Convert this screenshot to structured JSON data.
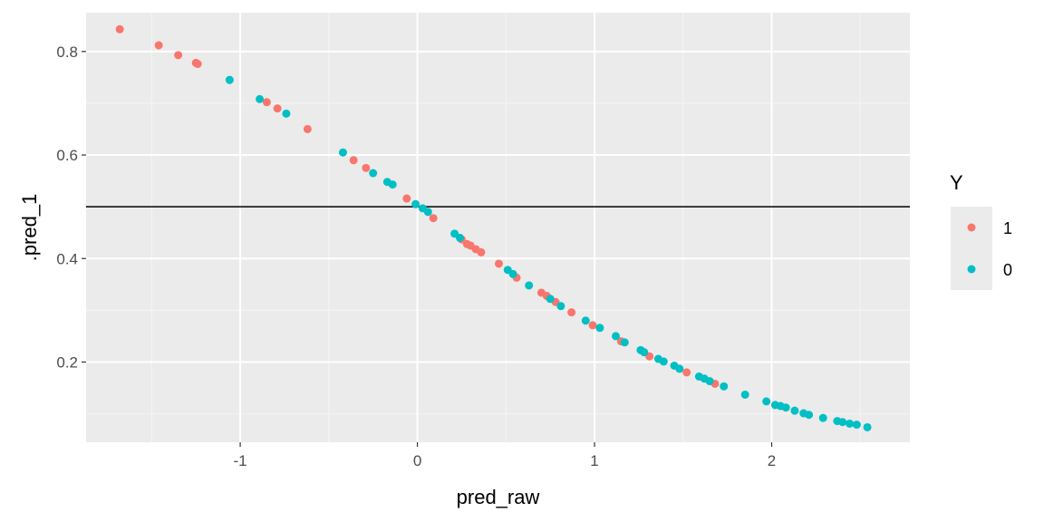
{
  "chart_data": {
    "type": "scatter",
    "xlabel": "pred_raw",
    "ylabel": ".pred_1",
    "xlim": [
      -1.87,
      2.78
    ],
    "ylim": [
      0.045,
      0.875
    ],
    "x_ticks": [
      -1,
      0,
      1,
      2
    ],
    "x_tick_labels": [
      "-1",
      "0",
      "1",
      "2"
    ],
    "y_ticks": [
      0.2,
      0.4,
      0.6,
      0.8
    ],
    "y_tick_labels": [
      "0.2",
      "0.4",
      "0.6",
      "0.8"
    ],
    "grid": true,
    "reference_line": {
      "orientation": "horizontal",
      "y": 0.5,
      "color": "#000000"
    },
    "legend": {
      "title": "Y",
      "placement": "right",
      "entries": [
        {
          "label": "1",
          "color": "#F8766D"
        },
        {
          "label": "0",
          "color": "#00BFC4"
        }
      ]
    },
    "series": [
      {
        "name": "1",
        "color": "#F8766D",
        "points": [
          [
            -1.68,
            0.843
          ],
          [
            -1.46,
            0.812
          ],
          [
            -1.35,
            0.793
          ],
          [
            -1.25,
            0.778
          ],
          [
            -1.24,
            0.776
          ],
          [
            -0.85,
            0.702
          ],
          [
            -0.79,
            0.69
          ],
          [
            -0.62,
            0.65
          ],
          [
            -0.36,
            0.59
          ],
          [
            -0.29,
            0.575
          ],
          [
            -0.06,
            0.516
          ],
          [
            0.09,
            0.478
          ],
          [
            0.25,
            0.437
          ],
          [
            0.28,
            0.428
          ],
          [
            0.3,
            0.425
          ],
          [
            0.33,
            0.418
          ],
          [
            0.36,
            0.412
          ],
          [
            0.46,
            0.39
          ],
          [
            0.56,
            0.363
          ],
          [
            0.7,
            0.334
          ],
          [
            0.73,
            0.328
          ],
          [
            0.78,
            0.316
          ],
          [
            0.87,
            0.296
          ],
          [
            0.99,
            0.271
          ],
          [
            1.15,
            0.24
          ],
          [
            1.31,
            0.211
          ],
          [
            1.52,
            0.18
          ],
          [
            1.68,
            0.158
          ]
        ]
      },
      {
        "name": "0",
        "color": "#00BFC4",
        "points": [
          [
            -1.06,
            0.745
          ],
          [
            -0.89,
            0.708
          ],
          [
            -0.74,
            0.68
          ],
          [
            -0.42,
            0.605
          ],
          [
            -0.25,
            0.565
          ],
          [
            -0.17,
            0.548
          ],
          [
            -0.14,
            0.543
          ],
          [
            -0.01,
            0.505
          ],
          [
            0.03,
            0.497
          ],
          [
            0.06,
            0.49
          ],
          [
            0.21,
            0.448
          ],
          [
            0.24,
            0.44
          ],
          [
            0.51,
            0.378
          ],
          [
            0.54,
            0.37
          ],
          [
            0.63,
            0.348
          ],
          [
            0.75,
            0.322
          ],
          [
            0.81,
            0.308
          ],
          [
            0.95,
            0.28
          ],
          [
            1.03,
            0.266
          ],
          [
            1.12,
            0.25
          ],
          [
            1.17,
            0.238
          ],
          [
            1.26,
            0.223
          ],
          [
            1.28,
            0.219
          ],
          [
            1.36,
            0.206
          ],
          [
            1.39,
            0.201
          ],
          [
            1.45,
            0.193
          ],
          [
            1.48,
            0.187
          ],
          [
            1.59,
            0.172
          ],
          [
            1.62,
            0.168
          ],
          [
            1.65,
            0.163
          ],
          [
            1.73,
            0.153
          ],
          [
            1.85,
            0.137
          ],
          [
            1.97,
            0.124
          ],
          [
            2.02,
            0.117
          ],
          [
            2.05,
            0.115
          ],
          [
            2.08,
            0.112
          ],
          [
            2.13,
            0.106
          ],
          [
            2.18,
            0.101
          ],
          [
            2.21,
            0.098
          ],
          [
            2.29,
            0.092
          ],
          [
            2.37,
            0.086
          ],
          [
            2.4,
            0.084
          ],
          [
            2.44,
            0.081
          ],
          [
            2.48,
            0.079
          ],
          [
            2.54,
            0.074
          ]
        ]
      }
    ]
  }
}
